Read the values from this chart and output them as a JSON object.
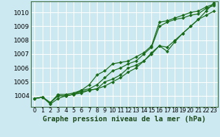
{
  "background_color": "#cce8f0",
  "plot_bg_color": "#cce8f0",
  "grid_color": "#b0d4dc",
  "line_color": "#1a6b1a",
  "marker_color": "#1a6b1a",
  "title": "Graphe pression niveau de la mer (hPa)",
  "ylabel_ticks": [
    1004,
    1005,
    1006,
    1007,
    1008,
    1009,
    1010
  ],
  "ylim": [
    1003.2,
    1010.8
  ],
  "xlim": [
    -0.5,
    23.5
  ],
  "xtick_labels": [
    "0",
    "1",
    "2",
    "3",
    "4",
    "5",
    "6",
    "7",
    "8",
    "9",
    "10",
    "11",
    "12",
    "13",
    "14",
    "15",
    "16",
    "17",
    "18",
    "19",
    "20",
    "21",
    "22",
    "23"
  ],
  "series": [
    [
      1003.8,
      1003.9,
      1003.5,
      1004.0,
      1004.0,
      1004.1,
      1004.3,
      1004.4,
      1004.5,
      1004.7,
      1005.0,
      1005.3,
      1005.7,
      1006.0,
      1006.5,
      1007.0,
      1007.6,
      1007.2,
      1007.9,
      1008.5,
      1009.0,
      1009.5,
      1010.1,
      1010.7
    ],
    [
      1003.8,
      1003.9,
      1003.4,
      1003.8,
      1004.0,
      1004.1,
      1004.2,
      1004.4,
      1004.5,
      1005.0,
      1005.2,
      1005.5,
      1006.0,
      1006.2,
      1006.5,
      1007.1,
      1007.6,
      1007.5,
      1008.0,
      1008.5,
      1009.0,
      1009.5,
      1009.8,
      1010.1
    ],
    [
      1003.8,
      1003.9,
      1003.5,
      1004.0,
      1004.0,
      1004.1,
      1004.4,
      1004.5,
      1004.8,
      1005.3,
      1005.8,
      1006.0,
      1006.3,
      1006.5,
      1007.0,
      1007.5,
      1009.0,
      1009.3,
      1009.5,
      1009.6,
      1009.8,
      1009.9,
      1010.3,
      1010.5
    ],
    [
      1003.8,
      1003.9,
      1003.5,
      1004.1,
      1004.1,
      1004.2,
      1004.4,
      1004.8,
      1005.5,
      1005.8,
      1006.3,
      1006.4,
      1006.5,
      1006.8,
      1007.1,
      1007.6,
      1009.3,
      1009.4,
      1009.6,
      1009.8,
      1010.0,
      1010.1,
      1010.4,
      1010.6
    ]
  ]
}
